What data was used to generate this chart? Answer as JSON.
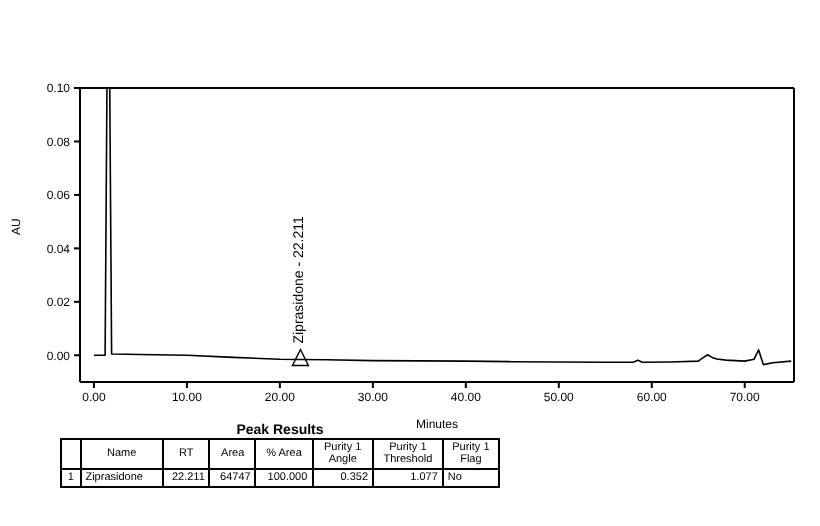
{
  "chart_data": {
    "type": "line",
    "xlabel": "Minutes",
    "ylabel": "AU",
    "x": [
      0,
      1.0,
      1.2,
      1.4,
      1.7,
      1.9,
      5,
      10,
      15,
      20,
      22.2,
      25,
      30,
      35,
      40,
      45,
      50,
      55,
      58,
      58.5,
      59,
      62,
      65,
      65.5,
      66,
      66.5,
      67,
      68,
      70,
      71,
      71.5,
      72,
      73,
      75
    ],
    "series": [
      {
        "color": "#000000",
        "values": [
          0,
          0,
          0,
          0.1,
          0.1,
          0.0005,
          0.0003,
          0,
          -0.0008,
          -0.0015,
          -0.0016,
          -0.0017,
          -0.002,
          -0.0021,
          -0.0022,
          -0.0024,
          -0.0025,
          -0.0026,
          -0.0026,
          -0.0019,
          -0.0026,
          -0.0025,
          -0.0022,
          -0.001,
          0.0002,
          -0.0008,
          -0.0014,
          -0.0018,
          -0.0022,
          -0.0015,
          0.002,
          -0.0035,
          -0.0028,
          -0.0022
        ]
      }
    ],
    "xlim": [
      -1.5,
      75.3
    ],
    "ylim": [
      -0.01,
      0.1
    ],
    "xticks": [
      {
        "value": 0,
        "label": "0.00"
      },
      {
        "value": 10,
        "label": "10.00"
      },
      {
        "value": 20,
        "label": "20.00"
      },
      {
        "value": 30,
        "label": "30.00"
      },
      {
        "value": 40,
        "label": "40.00"
      },
      {
        "value": 50,
        "label": "50.00"
      },
      {
        "value": 60,
        "label": "60.00"
      },
      {
        "value": 70,
        "label": "70.00"
      }
    ],
    "yticks": [
      {
        "value": 0,
        "label": "0.00"
      },
      {
        "value": 0.02,
        "label": "0.02"
      },
      {
        "value": 0.04,
        "label": "0.04"
      },
      {
        "value": 0.06,
        "label": "0.06"
      },
      {
        "value": 0.08,
        "label": "0.08"
      },
      {
        "value": 0.1,
        "label": "0.10"
      }
    ],
    "annotations": [
      {
        "text": "Ziprasidone - 22.211",
        "x": 22.211,
        "y": -0.0016
      },
      "Peak Results",
      "Name",
      "RT",
      "Area",
      "% Area",
      "Purity 1 Angle",
      "Purity 1 Threshold",
      "Purity 1 Flag",
      "1",
      "Ziprasidone",
      "22.211",
      "64747",
      "100.000",
      "0.352",
      "1.077",
      "No"
    ]
  }
}
